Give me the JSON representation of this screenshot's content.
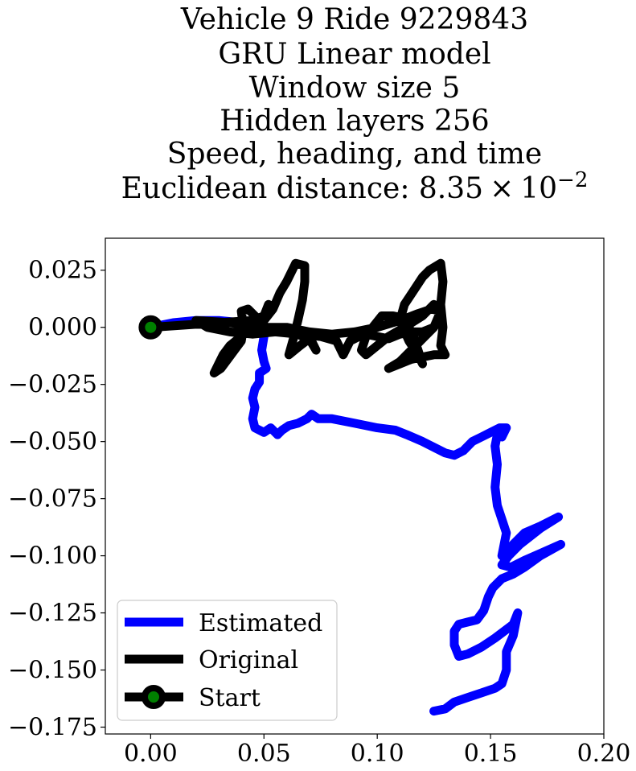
{
  "chart_data": {
    "type": "line",
    "title_lines": [
      "Vehicle 9 Ride 9229843",
      "GRU Linear model",
      "Window size 5",
      "Hidden layers 256",
      "Speed, heading, and time"
    ],
    "distance_prefix": "Euclidean distance: ",
    "distance_mantissa": "8.35",
    "distance_times": "×",
    "distance_base": "10",
    "distance_exponent": "−2",
    "xlabel": "",
    "ylabel": "",
    "xlim": [
      -0.02,
      0.2
    ],
    "ylim": [
      -0.178,
      0.039
    ],
    "x_ticks": [
      {
        "value": 0.0,
        "label": "0.00"
      },
      {
        "value": 0.05,
        "label": "0.05"
      },
      {
        "value": 0.1,
        "label": "0.10"
      },
      {
        "value": 0.15,
        "label": "0.15"
      },
      {
        "value": 0.2,
        "label": "0.20"
      }
    ],
    "y_ticks": [
      {
        "value": 0.025,
        "label": "0.025"
      },
      {
        "value": 0.0,
        "label": "0.000"
      },
      {
        "value": -0.025,
        "label": "−0.025"
      },
      {
        "value": -0.05,
        "label": "−0.050"
      },
      {
        "value": -0.075,
        "label": "−0.075"
      },
      {
        "value": -0.1,
        "label": "−0.100"
      },
      {
        "value": -0.125,
        "label": "−0.125"
      },
      {
        "value": -0.15,
        "label": "−0.150"
      },
      {
        "value": -0.175,
        "label": "−0.175"
      }
    ],
    "series": [
      {
        "name": "Estimated",
        "color": "#0000ff",
        "points": [
          [
            0.0,
            0.0
          ],
          [
            0.01,
            0.002
          ],
          [
            0.02,
            0.003
          ],
          [
            0.03,
            0.003
          ],
          [
            0.04,
            0.002
          ],
          [
            0.048,
            0.0
          ],
          [
            0.05,
            -0.004
          ],
          [
            0.049,
            -0.01
          ],
          [
            0.05,
            -0.015
          ],
          [
            0.051,
            -0.018
          ],
          [
            0.048,
            -0.02
          ],
          [
            0.048,
            -0.024
          ],
          [
            0.046,
            -0.027
          ],
          [
            0.045,
            -0.031
          ],
          [
            0.046,
            -0.035
          ],
          [
            0.045,
            -0.04
          ],
          [
            0.046,
            -0.044
          ],
          [
            0.05,
            -0.046
          ],
          [
            0.053,
            -0.044
          ],
          [
            0.056,
            -0.047
          ],
          [
            0.058,
            -0.045
          ],
          [
            0.061,
            -0.043
          ],
          [
            0.065,
            -0.042
          ],
          [
            0.069,
            -0.04
          ],
          [
            0.071,
            -0.038
          ],
          [
            0.074,
            -0.04
          ],
          [
            0.08,
            -0.04
          ],
          [
            0.09,
            -0.042
          ],
          [
            0.1,
            -0.044
          ],
          [
            0.108,
            -0.045
          ],
          [
            0.113,
            -0.047
          ],
          [
            0.12,
            -0.05
          ],
          [
            0.126,
            -0.053
          ],
          [
            0.13,
            -0.055
          ],
          [
            0.134,
            -0.056
          ],
          [
            0.138,
            -0.054
          ],
          [
            0.142,
            -0.05
          ],
          [
            0.146,
            -0.048
          ],
          [
            0.15,
            -0.046
          ],
          [
            0.154,
            -0.044
          ],
          [
            0.157,
            -0.044
          ],
          [
            0.155,
            -0.048
          ],
          [
            0.153,
            -0.047
          ],
          [
            0.152,
            -0.052
          ],
          [
            0.153,
            -0.06
          ],
          [
            0.152,
            -0.07
          ],
          [
            0.153,
            -0.078
          ],
          [
            0.155,
            -0.084
          ],
          [
            0.157,
            -0.09
          ],
          [
            0.155,
            -0.1
          ],
          [
            0.16,
            -0.095
          ],
          [
            0.165,
            -0.09
          ],
          [
            0.172,
            -0.087
          ],
          [
            0.18,
            -0.083
          ],
          [
            0.172,
            -0.088
          ],
          [
            0.163,
            -0.095
          ],
          [
            0.158,
            -0.1
          ],
          [
            0.155,
            -0.104
          ],
          [
            0.159,
            -0.105
          ],
          [
            0.165,
            -0.102
          ],
          [
            0.172,
            -0.099
          ],
          [
            0.181,
            -0.095
          ],
          [
            0.172,
            -0.1
          ],
          [
            0.165,
            -0.105
          ],
          [
            0.16,
            -0.108
          ],
          [
            0.155,
            -0.11
          ],
          [
            0.151,
            -0.114
          ],
          [
            0.149,
            -0.118
          ],
          [
            0.147,
            -0.124
          ],
          [
            0.144,
            -0.128
          ],
          [
            0.14,
            -0.129
          ],
          [
            0.136,
            -0.13
          ],
          [
            0.134,
            -0.133
          ],
          [
            0.134,
            -0.139
          ],
          [
            0.136,
            -0.144
          ],
          [
            0.14,
            -0.143
          ],
          [
            0.146,
            -0.14
          ],
          [
            0.152,
            -0.136
          ],
          [
            0.156,
            -0.133
          ],
          [
            0.16,
            -0.13
          ],
          [
            0.162,
            -0.125
          ],
          [
            0.16,
            -0.135
          ],
          [
            0.157,
            -0.142
          ],
          [
            0.157,
            -0.15
          ],
          [
            0.155,
            -0.156
          ],
          [
            0.152,
            -0.158
          ],
          [
            0.146,
            -0.16
          ],
          [
            0.14,
            -0.162
          ],
          [
            0.134,
            -0.164
          ],
          [
            0.13,
            -0.167
          ],
          [
            0.125,
            -0.168
          ]
        ]
      },
      {
        "name": "Original",
        "color": "#000000",
        "points": [
          [
            0.0,
            0.0
          ],
          [
            0.015,
            0.001
          ],
          [
            0.03,
            0.002
          ],
          [
            0.045,
            0.003
          ],
          [
            0.05,
            0.005
          ],
          [
            0.052,
            0.01
          ],
          [
            0.05,
            0.005
          ],
          [
            0.045,
            0.001
          ],
          [
            0.04,
            -0.004
          ],
          [
            0.035,
            -0.008
          ],
          [
            0.032,
            -0.012
          ],
          [
            0.03,
            -0.016
          ],
          [
            0.028,
            -0.02
          ],
          [
            0.031,
            -0.018
          ],
          [
            0.034,
            -0.014
          ],
          [
            0.037,
            -0.01
          ],
          [
            0.04,
            -0.006
          ],
          [
            0.041,
            0.0
          ],
          [
            0.04,
            0.007
          ],
          [
            0.043,
            0.008
          ],
          [
            0.046,
            0.005
          ],
          [
            0.048,
            0.002
          ],
          [
            0.05,
            0.003
          ],
          [
            0.054,
            0.008
          ],
          [
            0.057,
            0.015
          ],
          [
            0.06,
            0.02
          ],
          [
            0.062,
            0.024
          ],
          [
            0.064,
            0.028
          ],
          [
            0.068,
            0.027
          ],
          [
            0.068,
            0.02
          ],
          [
            0.067,
            0.012
          ],
          [
            0.065,
            0.003
          ],
          [
            0.063,
            -0.005
          ],
          [
            0.061,
            -0.012
          ],
          [
            0.066,
            -0.008
          ],
          [
            0.07,
            -0.005
          ],
          [
            0.073,
            -0.01
          ],
          [
            0.071,
            -0.006
          ],
          [
            0.065,
            -0.003
          ],
          [
            0.058,
            -0.002
          ],
          [
            0.048,
            0.0
          ],
          [
            0.035,
            0.002
          ],
          [
            0.02,
            0.003
          ],
          [
            0.025,
            0.0
          ],
          [
            0.035,
            -0.002
          ],
          [
            0.045,
            -0.003
          ],
          [
            0.055,
            -0.002
          ],
          [
            0.065,
            -0.003
          ],
          [
            0.075,
            -0.004
          ],
          [
            0.082,
            -0.006
          ],
          [
            0.085,
            -0.012
          ],
          [
            0.088,
            -0.006
          ],
          [
            0.092,
            -0.004
          ],
          [
            0.095,
            -0.003
          ],
          [
            0.1,
            -0.004
          ],
          [
            0.105,
            -0.005
          ],
          [
            0.11,
            -0.003
          ],
          [
            0.115,
            -0.002
          ],
          [
            0.12,
            -0.002
          ],
          [
            0.125,
            0.0
          ],
          [
            0.128,
            0.005
          ],
          [
            0.125,
            0.01
          ],
          [
            0.12,
            0.005
          ],
          [
            0.112,
            0.0
          ],
          [
            0.105,
            -0.004
          ],
          [
            0.1,
            -0.008
          ],
          [
            0.095,
            -0.012
          ],
          [
            0.093,
            -0.01
          ],
          [
            0.095,
            -0.004
          ],
          [
            0.098,
            0.0
          ],
          [
            0.102,
            0.005
          ],
          [
            0.107,
            0.005
          ],
          [
            0.112,
            0.004
          ],
          [
            0.114,
            0.0
          ],
          [
            0.116,
            -0.004
          ],
          [
            0.118,
            -0.01
          ],
          [
            0.12,
            -0.016
          ],
          [
            0.118,
            -0.012
          ],
          [
            0.114,
            -0.006
          ],
          [
            0.11,
            0.003
          ],
          [
            0.112,
            0.01
          ],
          [
            0.116,
            0.016
          ],
          [
            0.12,
            0.022
          ],
          [
            0.123,
            0.025
          ],
          [
            0.128,
            0.028
          ],
          [
            0.129,
            0.02
          ],
          [
            0.128,
            0.01
          ],
          [
            0.129,
            0.0
          ],
          [
            0.128,
            -0.008
          ],
          [
            0.13,
            -0.012
          ],
          [
            0.125,
            -0.012
          ],
          [
            0.12,
            -0.013
          ],
          [
            0.115,
            -0.014
          ],
          [
            0.11,
            -0.016
          ],
          [
            0.105,
            -0.018
          ],
          [
            0.11,
            -0.015
          ],
          [
            0.115,
            -0.01
          ],
          [
            0.12,
            -0.005
          ],
          [
            0.125,
            0.0
          ],
          [
            0.128,
            0.007
          ],
          [
            0.124,
            0.008
          ],
          [
            0.118,
            0.006
          ],
          [
            0.11,
            0.003
          ],
          [
            0.1,
            0.0
          ],
          [
            0.09,
            -0.002
          ],
          [
            0.08,
            -0.003
          ],
          [
            0.07,
            -0.002
          ],
          [
            0.06,
            0.0
          ],
          [
            0.05,
            0.0
          ],
          [
            0.04,
            0.0
          ]
        ]
      }
    ],
    "legend": {
      "placement": "lower-left",
      "entries": [
        {
          "label": "Estimated",
          "color": "#0000ff",
          "marker": false
        },
        {
          "label": "Original",
          "color": "#000000",
          "marker": false
        },
        {
          "label": "Start",
          "color": "#000000",
          "marker": true,
          "marker_fill": "#008000"
        }
      ]
    },
    "start_point": {
      "x": 0.0,
      "y": 0.0,
      "edge_color": "#000000",
      "face_color": "#008000"
    },
    "grid": false
  }
}
